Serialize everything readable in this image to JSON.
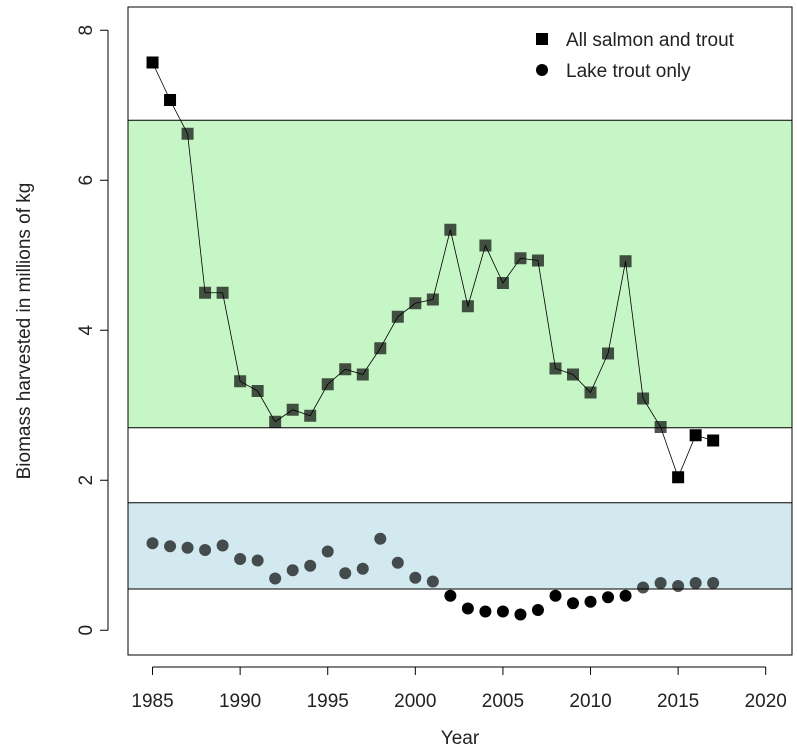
{
  "chart_data": {
    "type": "scatter",
    "x_label": "Year",
    "y_label": "Biomass harvested in millions of kg",
    "xlim": [
      1983.6,
      2021.5
    ],
    "ylim": [
      -0.33,
      8.31
    ],
    "xticks": [
      1985,
      1990,
      1995,
      2000,
      2005,
      2010,
      2015,
      2020
    ],
    "yticks": [
      0,
      2,
      4,
      6,
      8
    ],
    "bands": [
      {
        "ymin": 2.7,
        "ymax": 6.8,
        "color": "#c6f5c6"
      },
      {
        "ymin": 0.55,
        "ymax": 1.7,
        "color": "#d3e9f0"
      }
    ],
    "legend": "top-right",
    "x": [
      1985,
      1986,
      1987,
      1988,
      1989,
      1990,
      1991,
      1992,
      1993,
      1994,
      1995,
      1996,
      1997,
      1998,
      1999,
      2000,
      2001,
      2002,
      2003,
      2004,
      2005,
      2006,
      2007,
      2008,
      2009,
      2010,
      2011,
      2012,
      2013,
      2014,
      2015,
      2016,
      2017
    ],
    "series": [
      {
        "name": "All salmon and trout",
        "color": "#000000",
        "marker": "square",
        "connected": true,
        "values": [
          7.57,
          7.07,
          6.62,
          4.5,
          4.5,
          3.32,
          3.19,
          2.78,
          2.94,
          2.86,
          3.28,
          3.48,
          3.41,
          3.76,
          4.18,
          4.36,
          4.41,
          5.34,
          4.32,
          5.13,
          4.63,
          4.96,
          4.93,
          3.49,
          3.41,
          3.17,
          3.69,
          4.92,
          3.09,
          2.71,
          2.04,
          2.6,
          2.53
        ]
      },
      {
        "name": "Lake trout only",
        "color": "#000000",
        "marker": "circle",
        "connected": false,
        "values": [
          1.16,
          1.12,
          1.1,
          1.07,
          1.13,
          0.95,
          0.93,
          0.69,
          0.8,
          0.86,
          1.05,
          0.76,
          0.82,
          1.22,
          0.9,
          0.7,
          0.65,
          0.46,
          0.29,
          0.25,
          0.25,
          0.21,
          0.27,
          0.46,
          0.36,
          0.38,
          0.44,
          0.46,
          0.57,
          0.63,
          0.59,
          0.63,
          0.63
        ]
      }
    ]
  }
}
